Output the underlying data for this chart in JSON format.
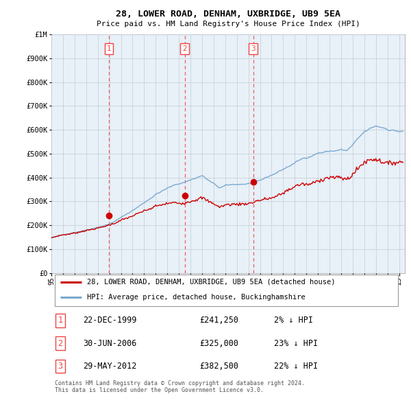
{
  "title": "28, LOWER ROAD, DENHAM, UXBRIDGE, UB9 5EA",
  "subtitle": "Price paid vs. HM Land Registry's House Price Index (HPI)",
  "ylabel_ticks": [
    "£0",
    "£100K",
    "£200K",
    "£300K",
    "£400K",
    "£500K",
    "£600K",
    "£700K",
    "£800K",
    "£900K",
    "£1M"
  ],
  "ytick_values": [
    0,
    100000,
    200000,
    300000,
    400000,
    500000,
    600000,
    700000,
    800000,
    900000,
    1000000
  ],
  "ylim": [
    0,
    1000000
  ],
  "xlim_start": 1995.3,
  "xlim_end": 2025.5,
  "background_color": "#ffffff",
  "chart_bg_color": "#e8f0f8",
  "grid_color": "#c8d0d8",
  "hpi_color": "#7aaad0",
  "price_color": "#cc0000",
  "vline_color": "#ee4444",
  "sale_points": [
    {
      "year": 1999.97,
      "price": 241250,
      "label": "1"
    },
    {
      "year": 2006.5,
      "price": 325000,
      "label": "2"
    },
    {
      "year": 2012.42,
      "price": 382500,
      "label": "3"
    }
  ],
  "legend_entries": [
    {
      "label": "28, LOWER ROAD, DENHAM, UXBRIDGE, UB9 5EA (detached house)",
      "color": "#cc0000"
    },
    {
      "label": "HPI: Average price, detached house, Buckinghamshire",
      "color": "#7aaad0"
    }
  ],
  "table_rows": [
    {
      "num": "1",
      "date": "22-DEC-1999",
      "price": "£241,250",
      "hpi": "2% ↓ HPI"
    },
    {
      "num": "2",
      "date": "30-JUN-2006",
      "price": "£325,000",
      "hpi": "23% ↓ HPI"
    },
    {
      "num": "3",
      "date": "29-MAY-2012",
      "price": "£382,500",
      "hpi": "22% ↓ HPI"
    }
  ],
  "footer": "Contains HM Land Registry data © Crown copyright and database right 2024.\nThis data is licensed under the Open Government Licence v3.0."
}
